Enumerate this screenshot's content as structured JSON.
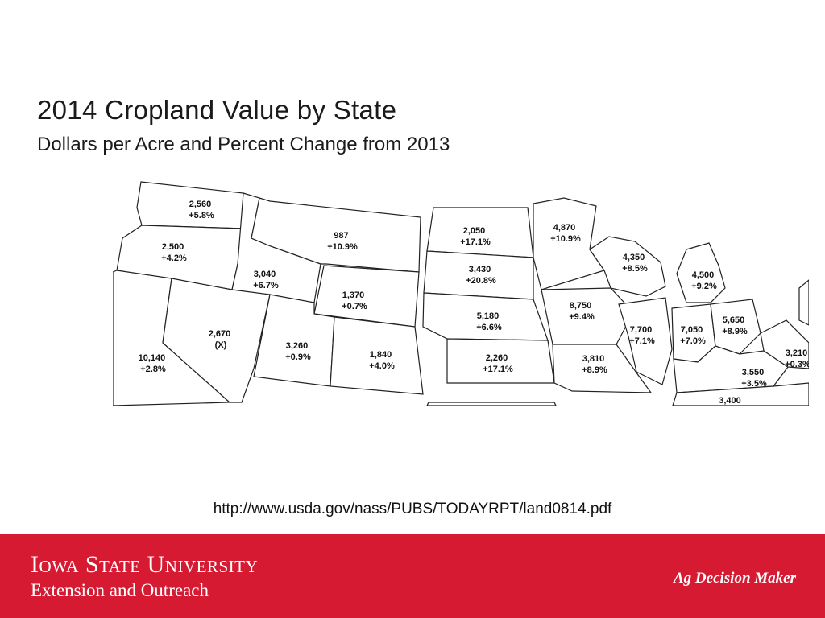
{
  "slide": {
    "title": "2014 Cropland Value by State",
    "subtitle": "Dollars per Acre and Percent Change from 2013",
    "source_url": "http://www.usda.gov/nass/PUBS/TODAYRPT/land0814.pdf"
  },
  "footer": {
    "university": "Iowa State University",
    "unit": "Extension and Outreach",
    "program": "Ag Decision Maker",
    "background_color": "#d61a32"
  },
  "map": {
    "states": [
      {
        "id": "WA",
        "value": "2,560",
        "change": "+5.8%"
      },
      {
        "id": "OR",
        "value": "2,500",
        "change": "+4.2%"
      },
      {
        "id": "CA",
        "value": "10,140",
        "change": "+2.8%"
      },
      {
        "id": "ID",
        "value": "3,040",
        "change": "+6.7%"
      },
      {
        "id": "NV",
        "value": "2,670",
        "change": "(X)"
      },
      {
        "id": "MT",
        "value": "987",
        "change": "+10.9%"
      },
      {
        "id": "WY",
        "value": "1,370",
        "change": "+0.7%"
      },
      {
        "id": "UT",
        "value": "3,260",
        "change": "+0.9%"
      },
      {
        "id": "CO",
        "value": "1,840",
        "change": "+4.0%"
      },
      {
        "id": "ND",
        "value": "2,050",
        "change": "+17.1%"
      },
      {
        "id": "SD",
        "value": "3,430",
        "change": "+20.8%"
      },
      {
        "id": "NE",
        "value": "5,180",
        "change": "+6.6%"
      },
      {
        "id": "KS",
        "value": "2,260",
        "change": "+17.1%"
      },
      {
        "id": "MN",
        "value": "4,870",
        "change": "+10.9%"
      },
      {
        "id": "IA",
        "value": "8,750",
        "change": "+9.4%"
      },
      {
        "id": "MO",
        "value": "3,810",
        "change": "+8.9%"
      },
      {
        "id": "WI",
        "value": "4,350",
        "change": "+8.5%"
      },
      {
        "id": "IL",
        "value": "7,700",
        "change": "+7.1%"
      },
      {
        "id": "MI",
        "value": "4,500",
        "change": "+9.2%"
      },
      {
        "id": "IN",
        "value": "7,050",
        "change": "+7.0%"
      },
      {
        "id": "OH",
        "value": "5,650",
        "change": "+8.9%"
      },
      {
        "id": "KY",
        "value": "3,550",
        "change": "+3.5%"
      },
      {
        "id": "WV",
        "value": "3,210",
        "change": "+0.3%"
      },
      {
        "id": "TN",
        "value": "3,400",
        "change": ""
      }
    ]
  }
}
